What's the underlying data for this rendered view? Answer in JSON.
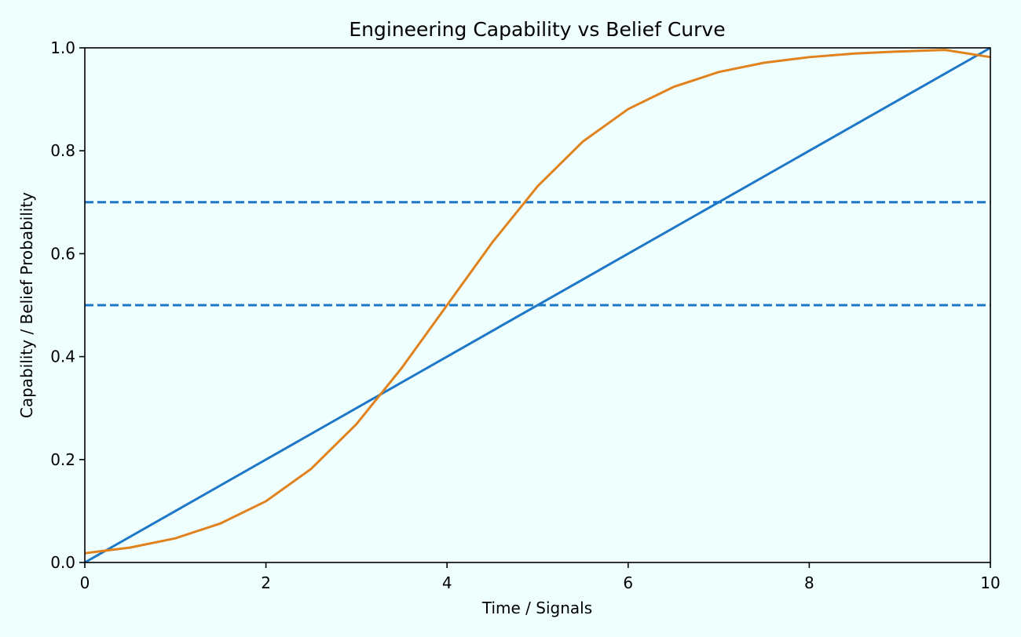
{
  "chart_data": {
    "type": "line",
    "title": "Engineering Capability vs Belief Curve",
    "xlabel": "Time / Signals",
    "ylabel": "Capability / Belief Probability",
    "xlim": [
      0,
      10
    ],
    "ylim": [
      0,
      1
    ],
    "xticks": [
      0,
      2,
      4,
      6,
      8,
      10
    ],
    "xtick_labels": [
      "0",
      "2",
      "4",
      "6",
      "8",
      "10"
    ],
    "yticks": [
      0,
      0.2,
      0.4,
      0.6,
      0.8,
      1.0
    ],
    "ytick_labels": [
      "0.0",
      "0.2",
      "0.4",
      "0.6",
      "0.8",
      "1.0"
    ],
    "grid": false,
    "legend": false,
    "background": "#eefffd",
    "series": [
      {
        "kind": "line",
        "color": "#1f77c8",
        "x": [
          0,
          10
        ],
        "y": [
          0,
          1
        ]
      },
      {
        "kind": "line",
        "color": "#e0821e",
        "x": [
          0,
          0.5,
          1,
          1.5,
          2,
          2.5,
          3,
          3.5,
          4,
          4.5,
          5,
          5.5,
          6,
          6.5,
          7,
          7.5,
          8,
          8.5,
          9,
          9.5,
          10
        ],
        "y": [
          0.018,
          0.029,
          0.047,
          0.076,
          0.119,
          0.182,
          0.269,
          0.378,
          0.5,
          0.622,
          0.731,
          0.818,
          0.881,
          0.924,
          0.953,
          0.971,
          0.982,
          0.989,
          0.993,
          0.996,
          0.982
        ]
      }
    ],
    "hlines": [
      {
        "y": 0.7,
        "color": "#1f77c8",
        "style": "dashed"
      },
      {
        "y": 0.5,
        "color": "#1f77c8",
        "style": "dashed"
      }
    ]
  }
}
